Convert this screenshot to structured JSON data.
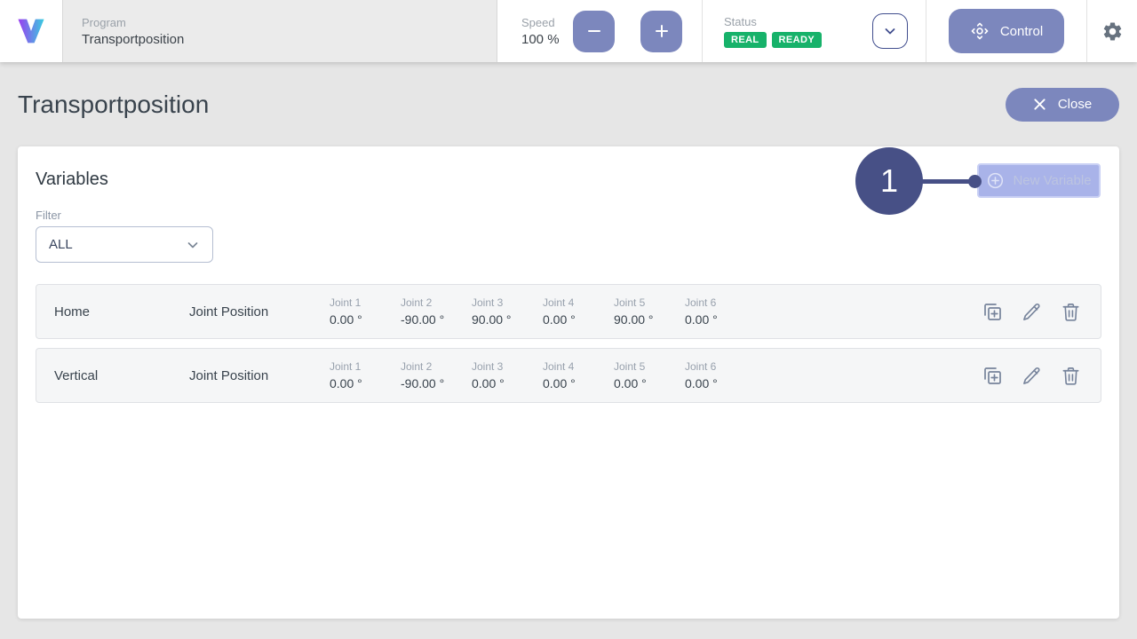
{
  "colors": {
    "accent": "#7c87bd",
    "annotation_marker": "#475086",
    "badge_green": "#17b26a",
    "page_background": "#e6e6e6",
    "row_background": "#f5f6f7"
  },
  "topbar": {
    "logo": "V",
    "program": {
      "label": "Program",
      "name": "Transportposition"
    },
    "speed": {
      "label": "Speed",
      "value": "100 %"
    },
    "status": {
      "label": "Status",
      "badges": [
        {
          "label": "REAL"
        },
        {
          "label": "READY"
        }
      ]
    },
    "control_label": "Control"
  },
  "page": {
    "title": "Transportposition",
    "close_label": "Close"
  },
  "panel": {
    "heading": "Variables",
    "new_variable_label": "New Variable",
    "filter": {
      "label": "Filter",
      "value": "ALL"
    }
  },
  "annotation": {
    "marker_label": "1"
  },
  "variables": [
    {
      "name": "Home",
      "type": "Joint Position",
      "joints": [
        {
          "label": "Joint 1",
          "value": "0.00 °"
        },
        {
          "label": "Joint 2",
          "value": "-90.00 °"
        },
        {
          "label": "Joint 3",
          "value": "90.00 °"
        },
        {
          "label": "Joint 4",
          "value": "0.00 °"
        },
        {
          "label": "Joint 5",
          "value": "90.00 °"
        },
        {
          "label": "Joint 6",
          "value": "0.00 °"
        }
      ]
    },
    {
      "name": "Vertical",
      "type": "Joint Position",
      "joints": [
        {
          "label": "Joint 1",
          "value": "0.00 °"
        },
        {
          "label": "Joint 2",
          "value": "-90.00 °"
        },
        {
          "label": "Joint 3",
          "value": "0.00 °"
        },
        {
          "label": "Joint 4",
          "value": "0.00 °"
        },
        {
          "label": "Joint 5",
          "value": "0.00 °"
        },
        {
          "label": "Joint 6",
          "value": "0.00 °"
        }
      ]
    }
  ],
  "icons": {
    "logo": "v-gradient-logo",
    "minus": "minus-icon",
    "plus": "plus-icon",
    "chevron_down": "chevron-down-icon",
    "control": "move-pad-icon",
    "settings": "gear-icon",
    "close": "x-icon",
    "new_variable": "circle-plus-icon",
    "duplicate": "copy-plus-icon",
    "edit": "pencil-icon",
    "delete": "trash-icon"
  }
}
